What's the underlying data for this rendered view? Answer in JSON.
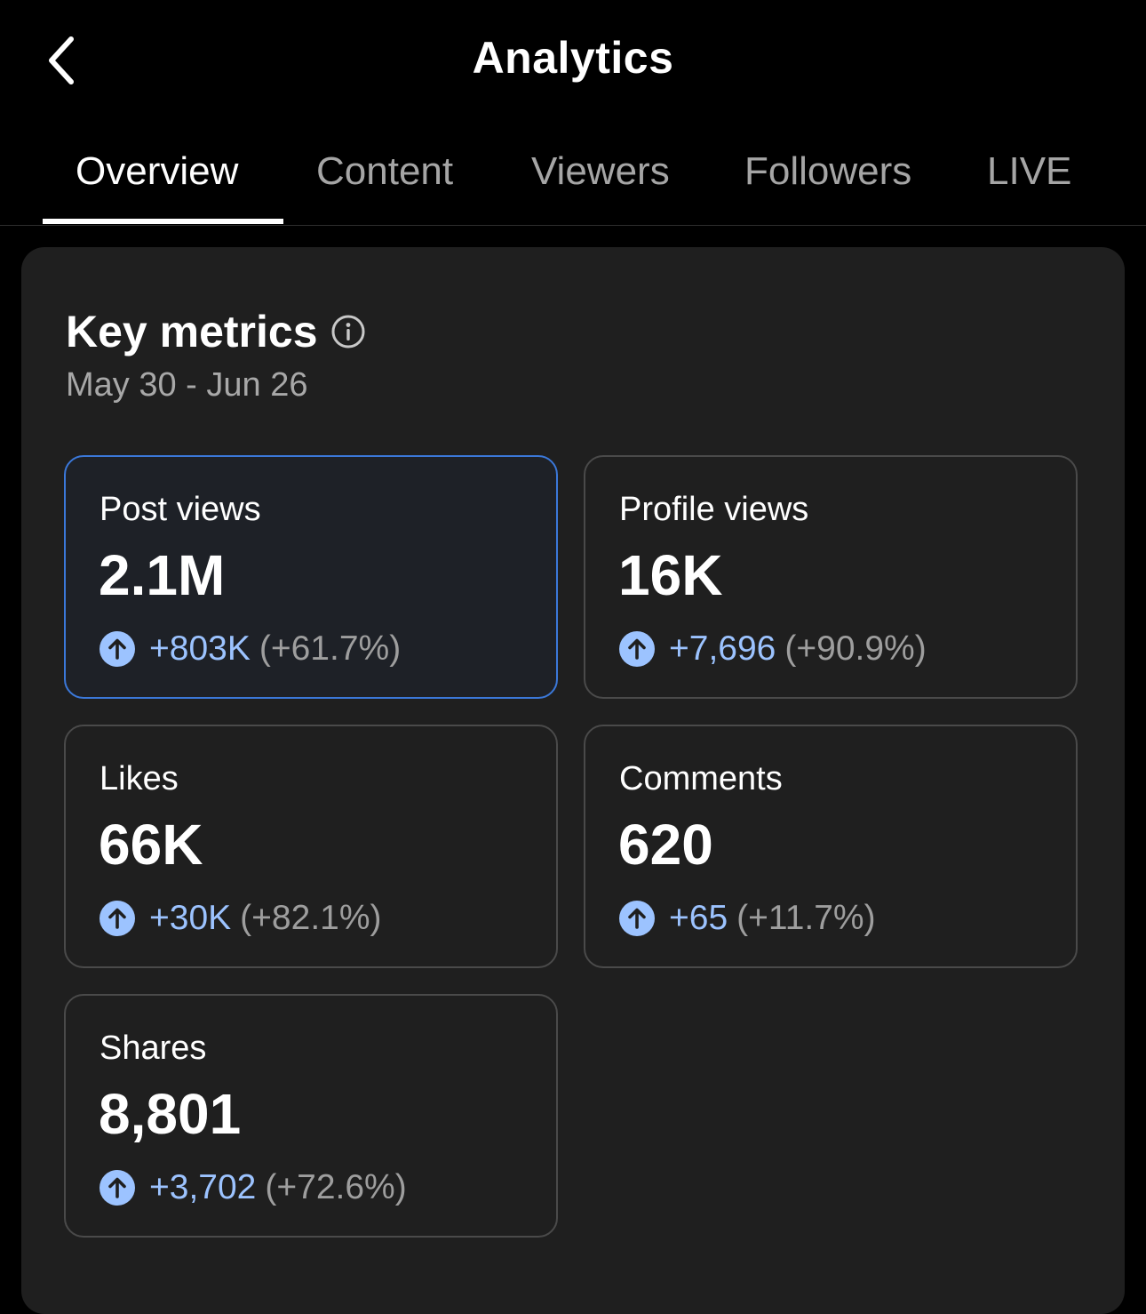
{
  "header": {
    "title": "Analytics"
  },
  "tabs": [
    {
      "label": "Overview",
      "active": true
    },
    {
      "label": "Content",
      "active": false
    },
    {
      "label": "Viewers",
      "active": false
    },
    {
      "label": "Followers",
      "active": false
    },
    {
      "label": "LIVE",
      "active": false
    }
  ],
  "key_metrics": {
    "title": "Key metrics",
    "date_range": "May 30 - Jun 26",
    "cards": [
      {
        "label": "Post views",
        "value": "2.1M",
        "delta": "+803K",
        "delta_pct": "(+61.7%)",
        "selected": true
      },
      {
        "label": "Profile views",
        "value": "16K",
        "delta": "+7,696",
        "delta_pct": "(+90.9%)",
        "selected": false
      },
      {
        "label": "Likes",
        "value": "66K",
        "delta": "+30K",
        "delta_pct": "(+82.1%)",
        "selected": false
      },
      {
        "label": "Comments",
        "value": "620",
        "delta": "+65",
        "delta_pct": "(+11.7%)",
        "selected": false
      },
      {
        "label": "Shares",
        "value": "8,801",
        "delta": "+3,702",
        "delta_pct": "(+72.6%)",
        "selected": false
      }
    ]
  },
  "colors": {
    "accent_blue": "#9cc3ff",
    "selected_border": "#3b78d9",
    "panel_bg": "#1f1f1f"
  },
  "icons": {
    "back": "chevron-left-icon",
    "info": "info-icon",
    "trend_up": "arrow-up-circle-icon"
  }
}
